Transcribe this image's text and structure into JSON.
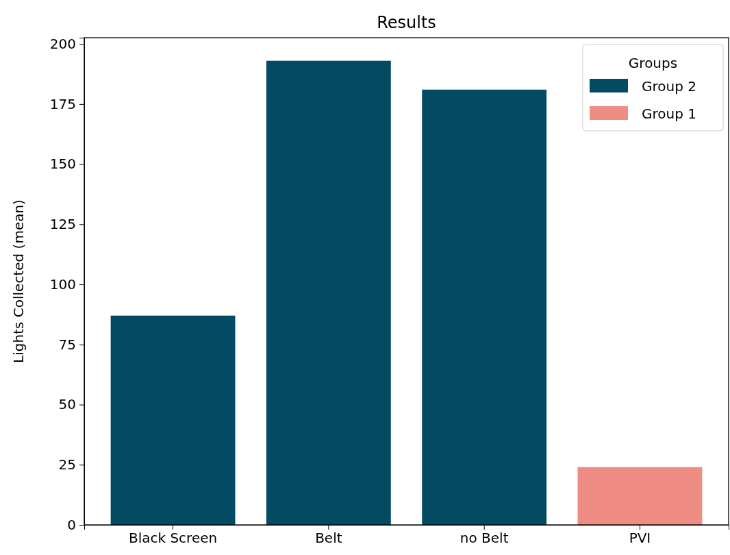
{
  "chart_data": {
    "type": "bar",
    "title": "Results",
    "ylabel": "Lights Collected (mean)",
    "legend_title": "Groups",
    "categories": [
      "Black Screen",
      "Belt",
      "no Belt",
      "PVI"
    ],
    "series": [
      {
        "name": "Group 2",
        "color": "#034a63",
        "values": [
          87,
          193,
          181,
          null
        ]
      },
      {
        "name": "Group 1",
        "color": "#ef8c84",
        "values": [
          null,
          null,
          null,
          24
        ]
      }
    ],
    "ylim": [
      0,
      202.6
    ],
    "yticks": [
      0,
      25,
      50,
      75,
      100,
      125,
      150,
      175,
      200
    ],
    "grid": false,
    "legend": "top right"
  }
}
